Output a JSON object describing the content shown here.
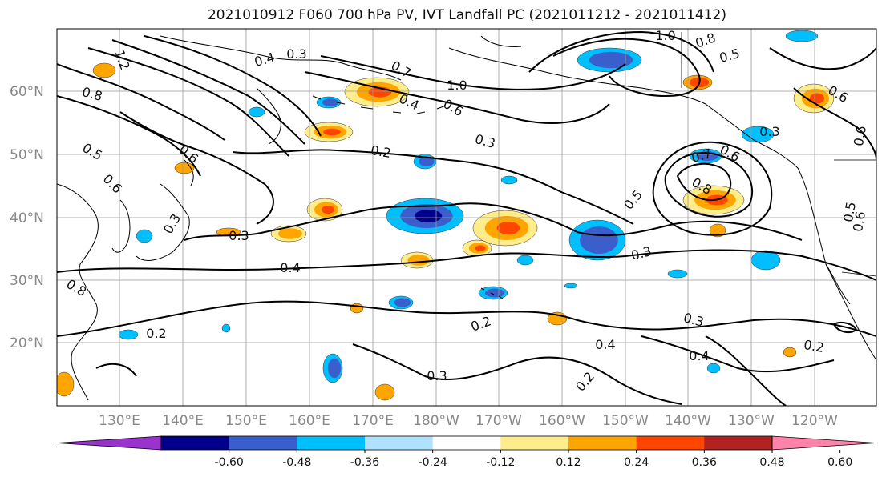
{
  "title": "2021010912 F060 700 hPa PV, IVT Landfall PC (2021011212 - 2021011412)",
  "lat_labels": [
    "60°N",
    "50°N",
    "40°N",
    "30°N",
    "20°N"
  ],
  "lon_labels": [
    "130°E",
    "140°E",
    "150°E",
    "160°E",
    "170°E",
    "180°W",
    "170°W",
    "160°W",
    "150°W",
    "140°W",
    "130°W",
    "120°W"
  ],
  "contour_labels": [
    "1.2",
    "0.4",
    "0.3",
    "0.7",
    "1.0",
    "0.8",
    "0.5",
    "0.8",
    "1.0",
    "0.6",
    "0.4",
    "0.6",
    "0.3",
    "0.2",
    "0.5",
    "0.6",
    "0.3",
    "0.3",
    "0.4",
    "0.2",
    "0.3",
    "0.2",
    "0.4",
    "0.3",
    "0.4",
    "0.2",
    "0.2",
    "0.3",
    "0.7",
    "0.6",
    "0.8",
    "0.5",
    "0.3",
    "0.6",
    "0.5",
    "0.6",
    "0.6",
    "0.8"
  ],
  "colorbar": {
    "ticks": [
      "-0.60",
      "-0.48",
      "-0.36",
      "-0.24",
      "-0.12",
      "0.12",
      "0.24",
      "0.36",
      "0.48",
      "0.60"
    ],
    "colors": [
      "#9a32cd",
      "#00008b",
      "#3a5fcd",
      "#00bfff",
      "#b0e2ff",
      "#ffffff",
      "#ffec8b",
      "#ffa500",
      "#ff4500",
      "#b22222",
      "#ff82ab"
    ]
  },
  "fill_colors": {
    "neg1": "#00bfff",
    "neg2": "#3a5fcd",
    "neg3": "#00008b",
    "pos1": "#ffec8b",
    "pos2": "#ffa500",
    "pos3": "#ff4500"
  }
}
